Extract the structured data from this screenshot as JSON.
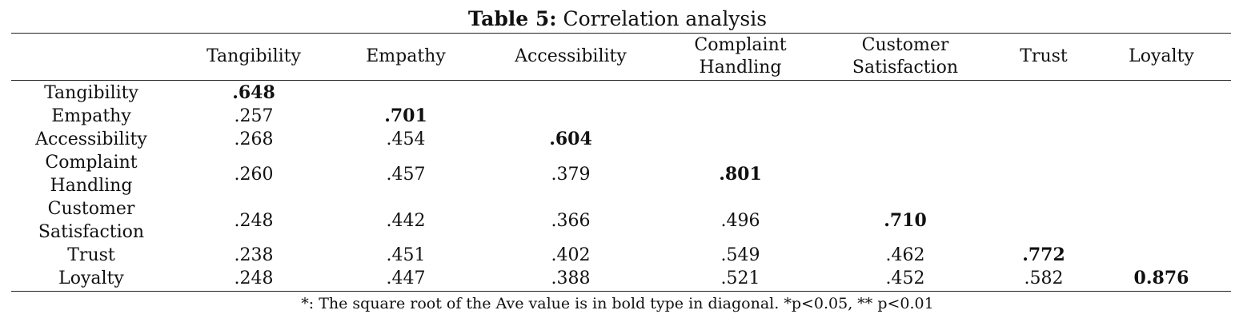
{
  "caption": {
    "label": "Table 5:",
    "title": "Correlation analysis"
  },
  "columns": [
    "Tangibility",
    "Empathy",
    "Accessibility",
    "Complaint Handling",
    "Customer Satisfaction",
    "Trust",
    "Loyalty"
  ],
  "rows": [
    {
      "label": "Tangibility",
      "values": [
        ".648",
        "",
        "",
        "",
        "",
        "",
        ""
      ]
    },
    {
      "label": "Empathy",
      "values": [
        ".257",
        ".701",
        "",
        "",
        "",
        "",
        ""
      ]
    },
    {
      "label": "Accessibility",
      "values": [
        ".268",
        ".454",
        ".604",
        "",
        "",
        "",
        ""
      ]
    },
    {
      "label": "Complaint Handling",
      "values": [
        ".260",
        ".457",
        ".379",
        ".801",
        "",
        "",
        ""
      ]
    },
    {
      "label": "Customer Satisfaction",
      "values": [
        ".248",
        ".442",
        ".366",
        ".496",
        ".710",
        "",
        ""
      ]
    },
    {
      "label": "Trust",
      "values": [
        ".238",
        ".451",
        ".402",
        ".549",
        ".462",
        ".772",
        ""
      ]
    },
    {
      "label": "Loyalty",
      "values": [
        ".248",
        ".447",
        ".388",
        ".521",
        ".452",
        ".582",
        "0.876"
      ]
    }
  ],
  "footnote": "*: The square root of the Ave value is in bold type in diagonal. *p<0.05, ** p<0.01"
}
